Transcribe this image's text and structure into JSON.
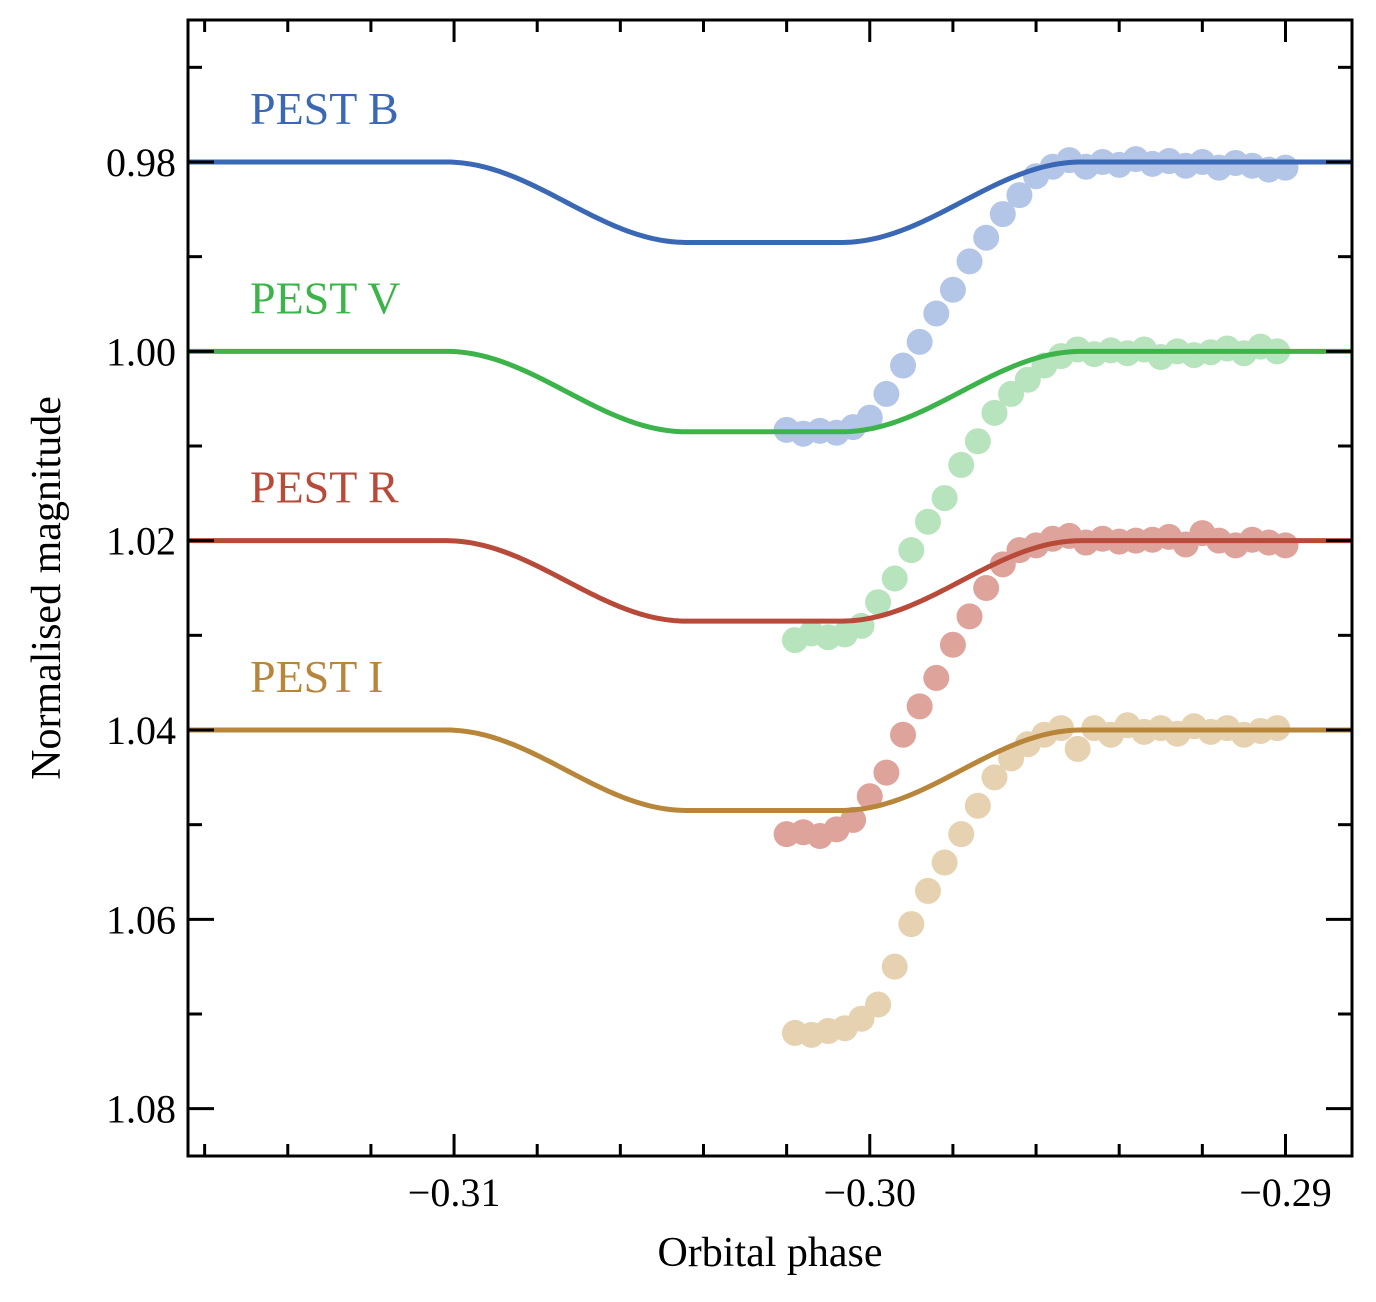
{
  "chart_data": {
    "type": "line",
    "title": "",
    "xlabel": "Orbital phase",
    "ylabel": "Normalised magnitude",
    "xlim": [
      -0.3164,
      -0.2884
    ],
    "ylim": [
      1.085,
      0.965
    ],
    "y_inverted": true,
    "grid": false,
    "ticks_direction": "in",
    "x_ticks": [
      -0.31,
      -0.3,
      -0.29
    ],
    "x_tick_labels": [
      "−0.31",
      "−0.30",
      "−0.29"
    ],
    "x_minor_step": 0.002,
    "y_ticks": [
      0.98,
      1.0,
      1.02,
      1.04,
      1.06,
      1.08
    ],
    "y_tick_labels": [
      "0.98",
      "1.00",
      "1.02",
      "1.04",
      "1.06",
      "1.08"
    ],
    "y_minor_step": 0.01,
    "model_shape": {
      "ingress_start": -0.3102,
      "full_start": -0.3044,
      "full_end": -0.3007,
      "egress_end": -0.2949,
      "depth": 0.0085
    },
    "series": [
      {
        "name": "PEST B",
        "color": "#3a68b4",
        "marker_color": "#b4c6e7",
        "baseline": 0.98,
        "points_x": [
          -0.302,
          -0.3016,
          -0.3012,
          -0.3008,
          -0.3004,
          -0.3,
          -0.2996,
          -0.2992,
          -0.2988,
          -0.2984,
          -0.298,
          -0.2976,
          -0.2972,
          -0.2968,
          -0.2964,
          -0.296,
          -0.2956,
          -0.2952,
          -0.2948,
          -0.2944,
          -0.294,
          -0.2936,
          -0.2932,
          -0.2928,
          -0.2924,
          -0.292,
          -0.2916,
          -0.2912,
          -0.2908,
          -0.2904,
          -0.29
        ],
        "points_y": [
          1.0083,
          1.0087,
          1.0084,
          1.0086,
          1.008,
          1.007,
          1.0045,
          1.0015,
          0.999,
          0.996,
          0.9935,
          0.9905,
          0.988,
          0.9855,
          0.9835,
          0.9815,
          0.9805,
          0.9798,
          0.9805,
          0.98,
          0.9803,
          0.9797,
          0.9802,
          0.9799,
          0.9804,
          0.98,
          0.9806,
          0.9801,
          0.9804,
          0.9808,
          0.9806
        ]
      },
      {
        "name": "PEST V",
        "color": "#3cb44b",
        "marker_color": "#b7e3bd",
        "baseline": 1.0,
        "points_x": [
          -0.3018,
          -0.3014,
          -0.301,
          -0.3006,
          -0.3002,
          -0.2998,
          -0.2994,
          -0.299,
          -0.2986,
          -0.2982,
          -0.2978,
          -0.2974,
          -0.297,
          -0.2966,
          -0.2962,
          -0.2958,
          -0.2954,
          -0.295,
          -0.2946,
          -0.2942,
          -0.2938,
          -0.2934,
          -0.293,
          -0.2926,
          -0.2922,
          -0.2918,
          -0.2914,
          -0.291,
          -0.2906,
          -0.2902
        ],
        "points_y": [
          1.0305,
          1.0298,
          1.0302,
          1.0299,
          1.029,
          1.0265,
          1.024,
          1.021,
          1.018,
          1.0155,
          1.012,
          1.0095,
          1.0065,
          1.0045,
          1.003,
          1.0015,
          1.0005,
          0.9998,
          1.0003,
          0.9999,
          1.0002,
          0.9998,
          1.0006,
          1.0,
          1.0004,
          1.0001,
          0.9997,
          1.0002,
          0.9995,
          1.0
        ]
      },
      {
        "name": "PEST R",
        "color": "#b84a3a",
        "marker_color": "#dea39b",
        "baseline": 1.02,
        "points_x": [
          -0.302,
          -0.3016,
          -0.3012,
          -0.3008,
          -0.3004,
          -0.3,
          -0.2996,
          -0.2992,
          -0.2988,
          -0.2984,
          -0.298,
          -0.2976,
          -0.2972,
          -0.2968,
          -0.2964,
          -0.296,
          -0.2956,
          -0.2952,
          -0.2948,
          -0.2944,
          -0.294,
          -0.2936,
          -0.2932,
          -0.2928,
          -0.2924,
          -0.292,
          -0.2916,
          -0.2912,
          -0.2908,
          -0.2904,
          -0.29
        ],
        "points_y": [
          1.051,
          1.0508,
          1.0512,
          1.0505,
          1.0495,
          1.047,
          1.0445,
          1.0405,
          1.0375,
          1.0345,
          1.031,
          1.028,
          1.025,
          1.0225,
          1.021,
          1.0205,
          1.0198,
          1.0195,
          1.0202,
          1.0198,
          1.0201,
          1.02,
          1.0199,
          1.0196,
          1.0204,
          1.0192,
          1.02,
          1.0205,
          1.0199,
          1.0202,
          1.0205
        ]
      },
      {
        "name": "PEST I",
        "color": "#b8863b",
        "marker_color": "#e6d2b0",
        "baseline": 1.04,
        "points_x": [
          -0.3018,
          -0.3014,
          -0.301,
          -0.3006,
          -0.3002,
          -0.2998,
          -0.2994,
          -0.299,
          -0.2986,
          -0.2982,
          -0.2978,
          -0.2974,
          -0.297,
          -0.2966,
          -0.2962,
          -0.2958,
          -0.2954,
          -0.295,
          -0.2946,
          -0.2942,
          -0.2938,
          -0.2934,
          -0.293,
          -0.2926,
          -0.2922,
          -0.2918,
          -0.2914,
          -0.291,
          -0.2906,
          -0.2902
        ],
        "points_y": [
          1.072,
          1.0722,
          1.0718,
          1.0715,
          1.0705,
          1.069,
          1.065,
          1.0605,
          1.057,
          1.054,
          1.051,
          1.048,
          1.045,
          1.043,
          1.0415,
          1.0405,
          1.0398,
          1.042,
          1.0398,
          1.0405,
          1.0395,
          1.0402,
          1.0398,
          1.0404,
          1.0396,
          1.0402,
          1.0398,
          1.0405,
          1.0401,
          1.0398
        ]
      }
    ]
  }
}
